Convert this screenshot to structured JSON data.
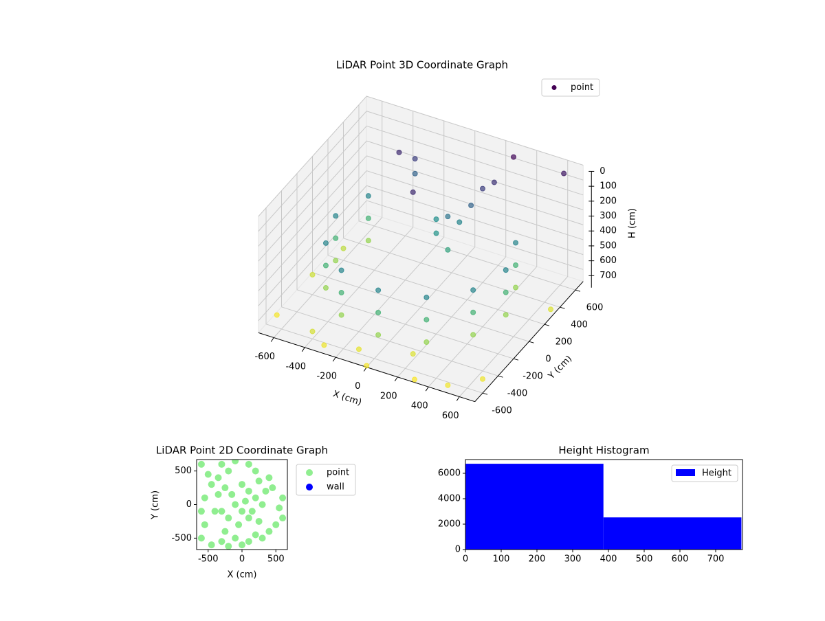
{
  "chart_data": [
    {
      "type": "scatter3d",
      "title": "LiDAR Point 3D Coordinate Graph",
      "xlabel": "X (cm)",
      "ylabel": "Y (cm)",
      "zlabel": "H (cm)",
      "xlim": [
        -700,
        700
      ],
      "ylim": [
        -700,
        700
      ],
      "zlim": [
        780,
        0
      ],
      "xticks": [
        -600,
        -400,
        -200,
        0,
        200,
        400,
        600
      ],
      "yticks": [
        -600,
        -400,
        -200,
        0,
        200,
        400,
        600
      ],
      "zticks": [
        0,
        100,
        200,
        300,
        400,
        500,
        600,
        700
      ],
      "grid": true,
      "colormap": "viridis",
      "legend": "upper right",
      "series": [
        {
          "name": "point",
          "x": [
            -476,
            -476,
            -476,
            -550,
            -550,
            -550,
            -476,
            -476,
            -476,
            -275,
            -275,
            -275,
            0,
            0,
            0,
            275,
            275,
            275,
            476,
            476,
            476,
            550,
            550,
            550,
            476,
            476,
            476,
            -275,
            -275,
            -350,
            50,
            100,
            150,
            200,
            250,
            0,
            100,
            -50,
            -650,
            -600,
            -300,
            0,
            300,
            650,
            690,
            -680,
            500,
            -100,
            200,
            -400,
            300,
            -100,
            600
          ],
          "y": [
            275,
            275,
            275,
            0,
            0,
            0,
            -275,
            -275,
            -275,
            -476,
            -476,
            -476,
            -550,
            -550,
            -550,
            -476,
            -476,
            -476,
            -275,
            -275,
            -275,
            0,
            0,
            0,
            275,
            275,
            275,
            476,
            476,
            420,
            250,
            300,
            350,
            400,
            450,
            200,
            150,
            300,
            -100,
            200,
            -650,
            -700,
            -680,
            -500,
            300,
            -500,
            -650,
            -600,
            -500,
            -600,
            600,
            100,
            650
          ],
          "z": [
            350,
            500,
            650,
            350,
            500,
            650,
            350,
            500,
            650,
            350,
            500,
            650,
            350,
            500,
            650,
            350,
            500,
            650,
            350,
            500,
            650,
            350,
            500,
            650,
            350,
            500,
            650,
            150,
            250,
            100,
            300,
            350,
            250,
            150,
            120,
            400,
            450,
            380,
            720,
            700,
            760,
            770,
            775,
            760,
            740,
            770,
            765,
            750,
            740,
            730,
            20,
            100,
            60
          ]
        }
      ]
    },
    {
      "type": "scatter",
      "title": "LiDAR Point 2D Coordinate Graph",
      "xlabel": "X (cm)",
      "ylabel": "Y (cm)",
      "xlim": [
        -670,
        670
      ],
      "ylim": [
        -670,
        670
      ],
      "xticks": [
        -500,
        0,
        500
      ],
      "yticks": [
        -500,
        0,
        500
      ],
      "legend": "outside right",
      "series": [
        {
          "name": "point",
          "color": "#90ee90",
          "x": [
            -600,
            -500,
            -450,
            -550,
            -600,
            -550,
            -600,
            -450,
            -300,
            -200,
            -100,
            0,
            100,
            200,
            300,
            400,
            500,
            600,
            550,
            600,
            450,
            400,
            250,
            200,
            100,
            -100,
            -200,
            -300,
            -350,
            -250,
            -150,
            0,
            100,
            200,
            -100,
            0,
            100,
            -200,
            -300,
            300,
            -50,
            250,
            -400,
            -250,
            50,
            150,
            -350,
            350
          ],
          "y": [
            600,
            450,
            300,
            100,
            -100,
            -300,
            -500,
            -600,
            -550,
            -620,
            -500,
            -600,
            -550,
            -450,
            -500,
            -400,
            -300,
            -200,
            -50,
            100,
            250,
            400,
            350,
            500,
            600,
            650,
            500,
            600,
            400,
            250,
            150,
            300,
            200,
            100,
            0,
            -100,
            -200,
            -200,
            -100,
            0,
            -300,
            -250,
            -100,
            -400,
            50,
            -100,
            150,
            200
          ]
        },
        {
          "name": "wall",
          "color": "#0000ff",
          "x": [],
          "y": []
        }
      ]
    },
    {
      "type": "histogram",
      "title": "Height Histogram",
      "bins": [
        0,
        386,
        772
      ],
      "counts": [
        6750,
        2530
      ],
      "color": "#0000ff",
      "label": "Height",
      "xlim": [
        0,
        775
      ],
      "ylim": [
        0,
        7080
      ],
      "xticks": [
        0,
        100,
        200,
        300,
        400,
        500,
        600,
        700
      ],
      "yticks": [
        0,
        2000,
        4000,
        6000
      ],
      "legend": "upper right"
    }
  ]
}
